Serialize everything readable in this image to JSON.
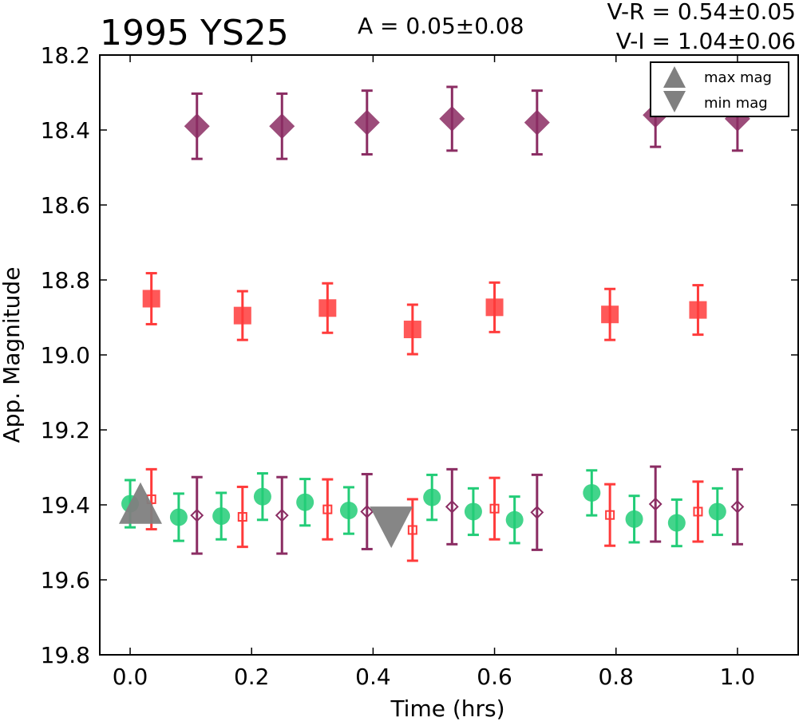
{
  "chart_data": {
    "type": "scatter",
    "title": "1995 YS25",
    "amplitude_label": "A  = 0.05±0.08",
    "color_labels": [
      "V-R = 0.54±0.05",
      "V-I  = 1.04±0.06"
    ],
    "xlabel": "Time (hrs)",
    "ylabel": "App. Magnitude",
    "xlim": [
      -0.05,
      1.1
    ],
    "ylim": [
      19.8,
      18.2
    ],
    "y_inverted": true,
    "xticks": [
      "0.0",
      "0.2",
      "0.4",
      "0.6",
      "0.8",
      "1.0"
    ],
    "yticks": [
      "18.2",
      "18.4",
      "18.6",
      "18.8",
      "19.0",
      "19.2",
      "19.4",
      "19.6",
      "19.8"
    ],
    "legend_position": "top-right",
    "legend": [
      {
        "label": "max mag",
        "marker": "triangle-up",
        "color": "#808080"
      },
      {
        "label": "min mag",
        "marker": "triangle-down",
        "color": "#808080"
      }
    ],
    "series": [
      {
        "marker": "diamond",
        "filled": true,
        "color": "#8b2d63",
        "points": [
          {
            "x": 0.11,
            "y": 18.39,
            "err": 0.087
          },
          {
            "x": 0.25,
            "y": 18.39,
            "err": 0.087
          },
          {
            "x": 0.39,
            "y": 18.38,
            "err": 0.085
          },
          {
            "x": 0.53,
            "y": 18.37,
            "err": 0.085
          },
          {
            "x": 0.67,
            "y": 18.38,
            "err": 0.085
          },
          {
            "x": 0.865,
            "y": 18.36,
            "err": 0.085
          },
          {
            "x": 1.0,
            "y": 18.37,
            "err": 0.085
          }
        ]
      },
      {
        "marker": "square",
        "filled": true,
        "color": "#ff3b3b",
        "points": [
          {
            "x": 0.035,
            "y": 18.85,
            "err": 0.068
          },
          {
            "x": 0.185,
            "y": 18.895,
            "err": 0.065
          },
          {
            "x": 0.325,
            "y": 18.875,
            "err": 0.066
          },
          {
            "x": 0.465,
            "y": 18.932,
            "err": 0.066
          },
          {
            "x": 0.6,
            "y": 18.873,
            "err": 0.066
          },
          {
            "x": 0.79,
            "y": 18.892,
            "err": 0.068
          },
          {
            "x": 0.935,
            "y": 18.88,
            "err": 0.066
          }
        ]
      },
      {
        "marker": "circle",
        "filled": true,
        "color": "#22cc77",
        "points": [
          {
            "x": 0.0,
            "y": 19.397,
            "err": 0.063
          },
          {
            "x": 0.08,
            "y": 19.433,
            "err": 0.063
          },
          {
            "x": 0.15,
            "y": 19.43,
            "err": 0.062
          },
          {
            "x": 0.218,
            "y": 19.378,
            "err": 0.062
          },
          {
            "x": 0.288,
            "y": 19.393,
            "err": 0.062
          },
          {
            "x": 0.36,
            "y": 19.415,
            "err": 0.062
          },
          {
            "x": 0.497,
            "y": 19.38,
            "err": 0.06
          },
          {
            "x": 0.565,
            "y": 19.418,
            "err": 0.062
          },
          {
            "x": 0.633,
            "y": 19.44,
            "err": 0.062
          },
          {
            "x": 0.76,
            "y": 19.368,
            "err": 0.06
          },
          {
            "x": 0.83,
            "y": 19.438,
            "err": 0.062
          },
          {
            "x": 0.9,
            "y": 19.448,
            "err": 0.062
          },
          {
            "x": 0.967,
            "y": 19.418,
            "err": 0.062
          }
        ]
      },
      {
        "marker": "square",
        "filled": false,
        "color": "#ff3b3b",
        "points": [
          {
            "x": 0.035,
            "y": 19.385,
            "err": 0.08
          },
          {
            "x": 0.185,
            "y": 19.432,
            "err": 0.08
          },
          {
            "x": 0.325,
            "y": 19.412,
            "err": 0.08
          },
          {
            "x": 0.465,
            "y": 19.467,
            "err": 0.082
          },
          {
            "x": 0.6,
            "y": 19.41,
            "err": 0.082
          },
          {
            "x": 0.79,
            "y": 19.427,
            "err": 0.082
          },
          {
            "x": 0.935,
            "y": 19.418,
            "err": 0.08
          }
        ]
      },
      {
        "marker": "diamond",
        "filled": false,
        "color": "#8b2d63",
        "points": [
          {
            "x": 0.11,
            "y": 19.428,
            "err": 0.102
          },
          {
            "x": 0.25,
            "y": 19.428,
            "err": 0.102
          },
          {
            "x": 0.39,
            "y": 19.418,
            "err": 0.1
          },
          {
            "x": 0.53,
            "y": 19.405,
            "err": 0.1
          },
          {
            "x": 0.67,
            "y": 19.42,
            "err": 0.1
          },
          {
            "x": 0.865,
            "y": 19.398,
            "err": 0.1
          },
          {
            "x": 1.0,
            "y": 19.405,
            "err": 0.1
          }
        ]
      }
    ],
    "extrema": [
      {
        "kind": "max mag",
        "marker": "triangle-up",
        "x": 0.017,
        "y": 19.41
      },
      {
        "kind": "min mag",
        "marker": "triangle-down",
        "x": 0.43,
        "y": 19.445
      }
    ]
  }
}
